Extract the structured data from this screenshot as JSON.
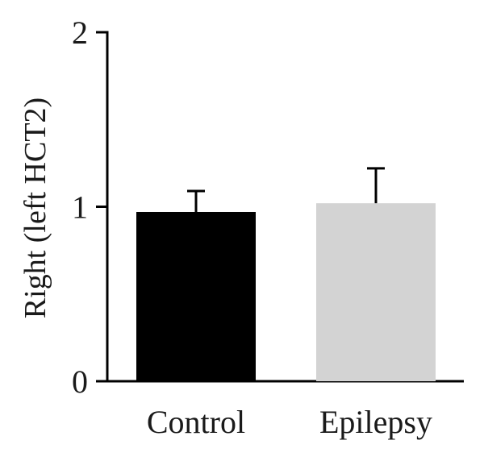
{
  "chart_data": {
    "type": "bar",
    "title": "",
    "xlabel": "",
    "ylabel": "Right (left HCT2)",
    "categories": [
      "Control",
      "Epilepsy"
    ],
    "values": [
      0.97,
      1.02
    ],
    "error_upper": [
      1.09,
      1.22
    ],
    "ylim": [
      0,
      2
    ],
    "yticks": [
      0,
      1,
      2
    ],
    "ytick_labels": [
      "0",
      "1",
      "2"
    ],
    "colors": [
      "#000000",
      "#d3d3d3"
    ],
    "grid": false,
    "legend": "none"
  }
}
